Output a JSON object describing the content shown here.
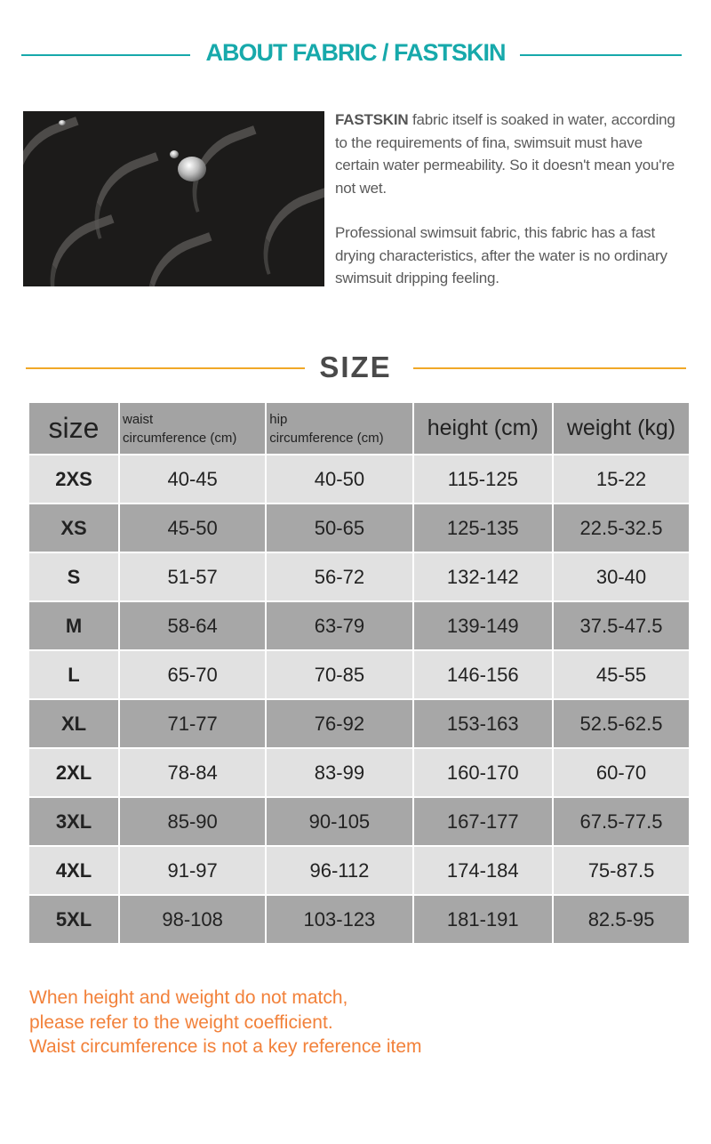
{
  "fabric_section": {
    "title": "ABOUT FABRIC / FASTSKIN",
    "paragraph1_bold": "FASTSKIN",
    "paragraph1": " fabric itself is soaked in water, according to the requirements of fina, swimsuit must have certain water permeability. So it doesn't mean you're not wet.",
    "paragraph2": "Professional swimsuit fabric, this fabric has a fast drying characteristics, after the water is no ordinary swimsuit dripping feeling."
  },
  "size_section": {
    "title": "SIZE",
    "headers": [
      "size",
      "waist\ncircumference (cm)",
      "hip\ncircumference (cm)",
      "height (cm)",
      "weight (kg)"
    ],
    "header_waist": [
      "waist",
      "circumference (cm)"
    ],
    "header_hip": [
      "hip",
      "circumference (cm)"
    ],
    "rows": [
      [
        "2XS",
        "40-45",
        "40-50",
        "115-125",
        "15-22"
      ],
      [
        "XS",
        "45-50",
        "50-65",
        "125-135",
        "22.5-32.5"
      ],
      [
        "S",
        "51-57",
        "56-72",
        "132-142",
        "30-40"
      ],
      [
        "M",
        "58-64",
        "63-79",
        "139-149",
        "37.5-47.5"
      ],
      [
        "L",
        "65-70",
        "70-85",
        "146-156",
        "45-55"
      ],
      [
        "XL",
        "71-77",
        "76-92",
        "153-163",
        "52.5-62.5"
      ],
      [
        "2XL",
        "78-84",
        "83-99",
        "160-170",
        "60-70"
      ],
      [
        "3XL",
        "85-90",
        "90-105",
        "167-177",
        "67.5-77.5"
      ],
      [
        "4XL",
        "91-97",
        "96-112",
        "174-184",
        "75-87.5"
      ],
      [
        "5XL",
        "98-108",
        "103-123",
        "181-191",
        "82.5-95"
      ]
    ]
  },
  "notes": [
    "When height and weight do not match,",
    "please refer to the weight coefficient.",
    "Waist circumference is not a key reference item"
  ],
  "colors": {
    "teal": "#17a9ab",
    "orange_line": "#f0a828",
    "note_orange": "#f2813a"
  }
}
